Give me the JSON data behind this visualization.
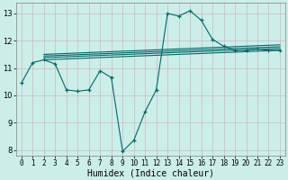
{
  "xlabel": "Humidex (Indice chaleur)",
  "ylabel": "",
  "background_color": "#cceee8",
  "grid_color": "#c8b8c8",
  "line_color": "#006868",
  "xlim": [
    -0.5,
    23.5
  ],
  "ylim": [
    7.8,
    13.4
  ],
  "yticks": [
    8,
    9,
    10,
    11,
    12,
    13
  ],
  "xticks": [
    0,
    1,
    2,
    3,
    4,
    5,
    6,
    7,
    8,
    9,
    10,
    11,
    12,
    13,
    14,
    15,
    16,
    17,
    18,
    19,
    20,
    21,
    22,
    23
  ],
  "main_line_x": [
    0,
    1,
    2,
    3,
    4,
    5,
    6,
    7,
    8,
    9,
    10,
    11,
    12,
    13,
    14,
    15,
    16,
    17,
    18,
    19,
    20,
    21,
    22,
    23
  ],
  "main_line_y": [
    10.45,
    11.2,
    11.3,
    11.15,
    10.2,
    10.15,
    10.2,
    10.9,
    10.65,
    7.95,
    8.35,
    9.4,
    10.2,
    13.0,
    12.9,
    13.1,
    12.75,
    12.05,
    11.8,
    11.65,
    11.65,
    11.7,
    11.65,
    11.65
  ],
  "flat_lines": [
    {
      "x": [
        2,
        23
      ],
      "y": [
        11.3,
        11.65
      ]
    },
    {
      "x": [
        2,
        23
      ],
      "y": [
        11.38,
        11.72
      ]
    },
    {
      "x": [
        2,
        23
      ],
      "y": [
        11.44,
        11.78
      ]
    },
    {
      "x": [
        2,
        23
      ],
      "y": [
        11.5,
        11.85
      ]
    }
  ]
}
